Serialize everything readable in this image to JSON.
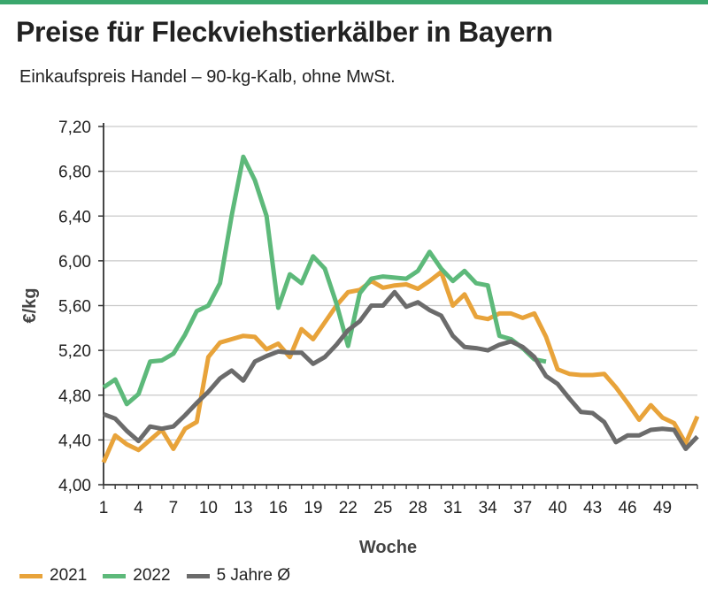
{
  "header": {
    "title": "Preise für Fleckviehstierkälber in Bayern",
    "subtitle": "Einkaufspreis Handel – 90-kg-Kalb, ohne MwSt."
  },
  "colors": {
    "accent_bar": "#3aa76d",
    "grid": "#c9c9c9",
    "axis": "#333333"
  },
  "chart_data": {
    "type": "line",
    "xlabel": "Woche",
    "ylabel": "€/kg",
    "xlim": [
      1,
      52
    ],
    "ylim": [
      4.0,
      7.2
    ],
    "xticks": [
      1,
      4,
      7,
      10,
      13,
      16,
      19,
      22,
      25,
      28,
      31,
      34,
      37,
      40,
      43,
      46,
      49
    ],
    "yticks": [
      4.0,
      4.4,
      4.8,
      5.2,
      5.6,
      6.0,
      6.4,
      6.8,
      7.2
    ],
    "ytick_labels": [
      "4,00",
      "4,40",
      "4,80",
      "5,20",
      "5,60",
      "6,00",
      "6,40",
      "6,80",
      "7,20"
    ],
    "grid": "horizontal",
    "legend_position": "bottom-left",
    "series": [
      {
        "name": "2021",
        "color": "#e8a33a",
        "x": [
          1,
          2,
          3,
          4,
          5,
          6,
          7,
          8,
          9,
          10,
          11,
          12,
          13,
          14,
          15,
          16,
          17,
          18,
          19,
          20,
          21,
          22,
          23,
          24,
          25,
          26,
          27,
          28,
          29,
          30,
          31,
          32,
          33,
          34,
          35,
          36,
          37,
          38,
          39,
          40,
          41,
          42,
          43,
          44,
          45,
          46,
          47,
          48,
          49,
          50,
          51,
          52
        ],
        "values": [
          4.2,
          4.44,
          4.36,
          4.31,
          4.4,
          4.49,
          4.32,
          4.5,
          4.56,
          5.14,
          5.27,
          5.3,
          5.33,
          5.32,
          5.21,
          5.26,
          5.14,
          5.39,
          5.3,
          5.45,
          5.6,
          5.72,
          5.74,
          5.82,
          5.76,
          5.78,
          5.79,
          5.75,
          5.82,
          5.9,
          5.6,
          5.7,
          5.5,
          5.48,
          5.53,
          5.53,
          5.49,
          5.53,
          5.32,
          5.03,
          4.99,
          4.98,
          4.98,
          4.99,
          4.87,
          4.73,
          4.58,
          4.71,
          4.6,
          4.55,
          4.37,
          4.61
        ]
      },
      {
        "name": "2022",
        "color": "#5db97a",
        "x": [
          1,
          2,
          3,
          4,
          5,
          6,
          7,
          8,
          9,
          10,
          11,
          12,
          13,
          14,
          15,
          16,
          17,
          18,
          19,
          20,
          21,
          22,
          23,
          24,
          25,
          26,
          27,
          28,
          29,
          30,
          31,
          32,
          33,
          34,
          35,
          36,
          37,
          38,
          39
        ],
        "values": [
          4.87,
          4.94,
          4.72,
          4.81,
          5.1,
          5.11,
          5.17,
          5.34,
          5.55,
          5.6,
          5.8,
          6.4,
          6.93,
          6.72,
          6.4,
          5.58,
          5.88,
          5.8,
          6.04,
          5.93,
          5.62,
          5.24,
          5.71,
          5.84,
          5.86,
          5.85,
          5.84,
          5.91,
          6.08,
          5.93,
          5.82,
          5.91,
          5.8,
          5.78,
          5.33,
          5.3,
          5.22,
          5.12,
          5.1
        ]
      },
      {
        "name": "5 Jahre Ø",
        "color": "#6b6b6b",
        "x": [
          1,
          2,
          3,
          4,
          5,
          6,
          7,
          8,
          9,
          10,
          11,
          12,
          13,
          14,
          15,
          16,
          17,
          18,
          19,
          20,
          21,
          22,
          23,
          24,
          25,
          26,
          27,
          28,
          29,
          30,
          31,
          32,
          33,
          34,
          35,
          36,
          37,
          38,
          39,
          40,
          41,
          42,
          43,
          44,
          45,
          46,
          47,
          48,
          49,
          50,
          51,
          52
        ],
        "values": [
          4.63,
          4.59,
          4.48,
          4.39,
          4.52,
          4.5,
          4.52,
          4.62,
          4.73,
          4.83,
          4.95,
          5.02,
          4.93,
          5.1,
          5.15,
          5.19,
          5.18,
          5.18,
          5.08,
          5.14,
          5.25,
          5.38,
          5.46,
          5.6,
          5.6,
          5.72,
          5.59,
          5.63,
          5.56,
          5.51,
          5.33,
          5.23,
          5.22,
          5.2,
          5.25,
          5.28,
          5.23,
          5.14,
          4.97,
          4.9,
          4.77,
          4.65,
          4.64,
          4.56,
          4.38,
          4.44,
          4.44,
          4.49,
          4.5,
          4.49,
          4.32,
          4.43
        ]
      }
    ]
  }
}
